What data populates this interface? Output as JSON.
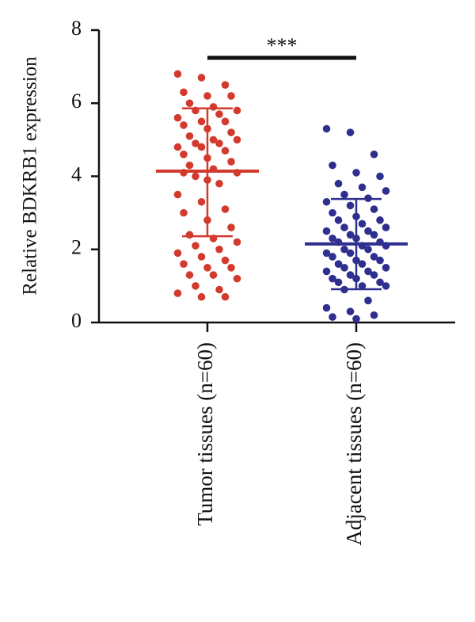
{
  "chart_data": {
    "type": "scatter-dot",
    "y_label": "Relative BDKRB1 expression",
    "categories": [
      "Tumor tissues (n=60)",
      "Adjacent tissues (n=60)"
    ],
    "ylim": [
      0,
      8
    ],
    "yticks": [
      0,
      2,
      4,
      6,
      8
    ],
    "significance": "***",
    "series": [
      {
        "color": "#d23a2e",
        "mean": 4.14,
        "sd_upper": 5.86,
        "sd_lower": 2.36,
        "values": [
          6.8,
          6.7,
          6.5,
          6.3,
          6.2,
          6.2,
          6.0,
          5.9,
          5.8,
          5.8,
          5.7,
          5.6,
          5.5,
          5.5,
          5.4,
          5.3,
          5.2,
          5.1,
          5.0,
          5.0,
          4.9,
          4.9,
          4.8,
          4.8,
          4.7,
          4.6,
          4.5,
          4.4,
          4.3,
          4.2,
          4.1,
          4.0,
          3.8,
          3.5,
          3.3,
          3.1,
          3.0,
          2.8,
          2.6,
          2.4,
          2.3,
          2.2,
          2.1,
          2.0,
          1.9,
          1.8,
          1.7,
          1.6,
          1.5,
          1.5,
          1.3,
          1.3,
          1.2,
          1.0,
          0.9,
          0.8,
          0.7,
          0.7,
          4.1,
          3.9
        ]
      },
      {
        "color": "#2e2f8f",
        "mean": 2.15,
        "sd_upper": 3.38,
        "sd_lower": 0.91,
        "values": [
          5.3,
          5.2,
          4.6,
          4.3,
          4.1,
          4.0,
          3.8,
          3.7,
          3.6,
          3.5,
          3.4,
          3.3,
          3.2,
          3.1,
          3.0,
          2.9,
          2.8,
          2.8,
          2.7,
          2.6,
          2.6,
          2.5,
          2.5,
          2.4,
          2.4,
          2.3,
          2.3,
          2.2,
          2.2,
          2.1,
          2.1,
          2.0,
          2.0,
          1.9,
          1.9,
          1.8,
          1.8,
          1.7,
          1.7,
          1.6,
          1.6,
          1.5,
          1.5,
          1.4,
          1.4,
          1.3,
          1.3,
          1.2,
          1.2,
          1.1,
          1.1,
          1.0,
          1.0,
          0.9,
          0.6,
          0.4,
          0.3,
          0.2,
          0.15,
          0.1
        ]
      }
    ]
  }
}
